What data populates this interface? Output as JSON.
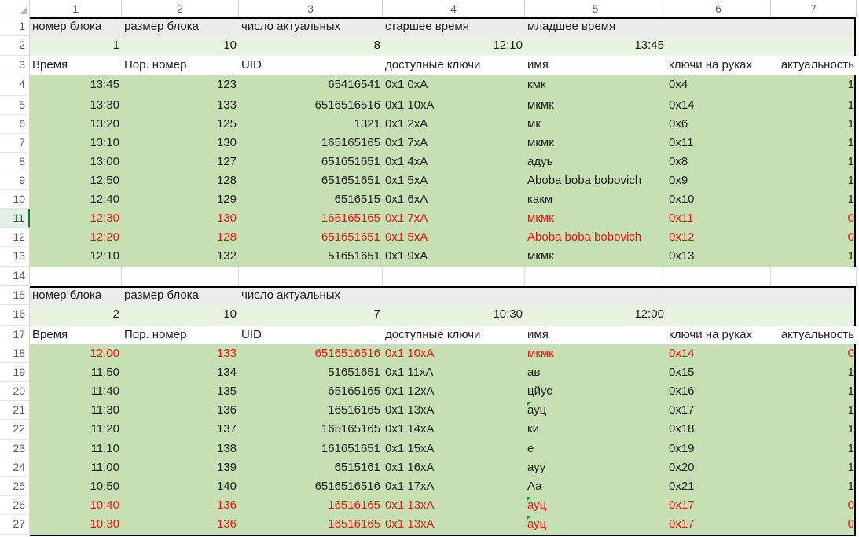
{
  "col_headers": [
    "1",
    "2",
    "3",
    "4",
    "5",
    "6",
    "7"
  ],
  "block1": {
    "header_row": {
      "row": "1",
      "labels": [
        "номер блока",
        "размер блока",
        "число актуальных",
        "старшее время",
        "младшее время"
      ]
    },
    "values_row": {
      "row": "2",
      "values": [
        "1",
        "10",
        "8",
        "12:10",
        "13:45"
      ]
    },
    "col_row": {
      "row": "3",
      "labels": [
        "Время",
        "Пор. номер",
        "UID",
        "доступные ключи",
        "имя",
        "ключи на руках",
        "актуальность"
      ]
    },
    "data": [
      {
        "row": "4",
        "red": false,
        "cells": [
          "13:45",
          "123",
          "65416541",
          "0x1 0xA",
          "кмк",
          "0x4",
          "1"
        ]
      },
      {
        "row": "5",
        "red": false,
        "cells": [
          "13:30",
          "133",
          "6516516516",
          "0x1 10xA",
          "мкмк",
          "0x14",
          "1"
        ]
      },
      {
        "row": "6",
        "red": false,
        "cells": [
          "13:20",
          "125",
          "1321",
          "0x1 2xA",
          "мк",
          "0x6",
          "1"
        ]
      },
      {
        "row": "7",
        "red": false,
        "cells": [
          "13:10",
          "130",
          "165165165",
          "0x1 7xA",
          "мкмк",
          "0x11",
          "1"
        ]
      },
      {
        "row": "8",
        "red": false,
        "cells": [
          "13:00",
          "127",
          "651651651",
          "0x1 4xA",
          "адуь",
          "0x8",
          "1"
        ]
      },
      {
        "row": "9",
        "red": false,
        "cells": [
          "12:50",
          "128",
          "651651651",
          "0x1 5xA",
          "Aboba boba bobovich",
          "0x9",
          "1"
        ]
      },
      {
        "row": "10",
        "red": false,
        "cells": [
          "12:40",
          "129",
          "6516515",
          "0x1 6xA",
          "какм",
          "0x10",
          "1"
        ]
      },
      {
        "row": "11",
        "red": true,
        "cells": [
          "12:30",
          "130",
          "165165165",
          "0x1 7xA",
          "мкмк",
          "0x11",
          "0"
        ]
      },
      {
        "row": "12",
        "red": true,
        "cells": [
          "12:20",
          "128",
          "651651651",
          "0x1 5xA",
          "Aboba boba bobovich",
          "0x12",
          "0"
        ]
      },
      {
        "row": "13",
        "red": false,
        "cells": [
          "12:10",
          "132",
          "51651651",
          "0x1 9xA",
          "мкмк",
          "0x13",
          "1"
        ]
      }
    ]
  },
  "empty_row": "14",
  "block2": {
    "header_row": {
      "row": "15",
      "labels": [
        "номер блока",
        "размер блока",
        "число актуальных",
        "",
        ""
      ]
    },
    "values_row": {
      "row": "16",
      "values": [
        "2",
        "10",
        "7",
        "10:30",
        "12:00"
      ]
    },
    "col_row": {
      "row": "17",
      "labels": [
        "Время",
        "Пор. номер",
        "UID",
        "доступные ключи",
        "имя",
        "ключи на руках",
        "актуальность"
      ]
    },
    "data": [
      {
        "row": "18",
        "red": true,
        "cells": [
          "12:00",
          "133",
          "6516516516",
          "0x1 10xA",
          "мкмк",
          "0x14",
          "0"
        ]
      },
      {
        "row": "19",
        "red": false,
        "cells": [
          "11:50",
          "134",
          "51651651",
          "0x1 11xA",
          "ав",
          "0x15",
          "1"
        ]
      },
      {
        "row": "20",
        "red": false,
        "cells": [
          "11:40",
          "135",
          "65165165",
          "0x1 12xA",
          "цйус",
          "0x16",
          "1"
        ]
      },
      {
        "row": "21",
        "red": false,
        "cells": [
          "11:30",
          "136",
          "16516165",
          "0x1 13xA",
          "ауц",
          "0x17",
          "1"
        ]
      },
      {
        "row": "22",
        "red": false,
        "cells": [
          "11:20",
          "137",
          "165165165",
          "0x1 14xA",
          "ки",
          "0x18",
          "1"
        ]
      },
      {
        "row": "23",
        "red": false,
        "cells": [
          "11:10",
          "138",
          "161651651",
          "0x1 15xA",
          "е",
          "0x19",
          "1"
        ]
      },
      {
        "row": "24",
        "red": false,
        "cells": [
          "11:00",
          "139",
          "6515161",
          "0x1 16xA",
          "ауу",
          "0x20",
          "1"
        ]
      },
      {
        "row": "25",
        "red": false,
        "cells": [
          "10:50",
          "140",
          "6516516516",
          "0x1 17xA",
          "Аа",
          "0x21",
          "1"
        ]
      },
      {
        "row": "26",
        "red": true,
        "cells": [
          "10:40",
          "136",
          "16516165",
          "0x1 13xA",
          "ауц",
          "0x17",
          "0"
        ]
      },
      {
        "row": "27",
        "red": true,
        "cells": [
          "10:30",
          "136",
          "16516165",
          "0x1 13xA",
          "ауц",
          "0x17",
          "0"
        ]
      }
    ]
  },
  "active_row": "11",
  "green_tick_rows": [
    "21",
    "26",
    "27"
  ],
  "colors": {
    "header_bg": "#ececec",
    "values_bg": "#e8f3e0",
    "data_bg": "#c6e0b4",
    "red_text": "#e8170f",
    "active_header": "#1e7145"
  }
}
